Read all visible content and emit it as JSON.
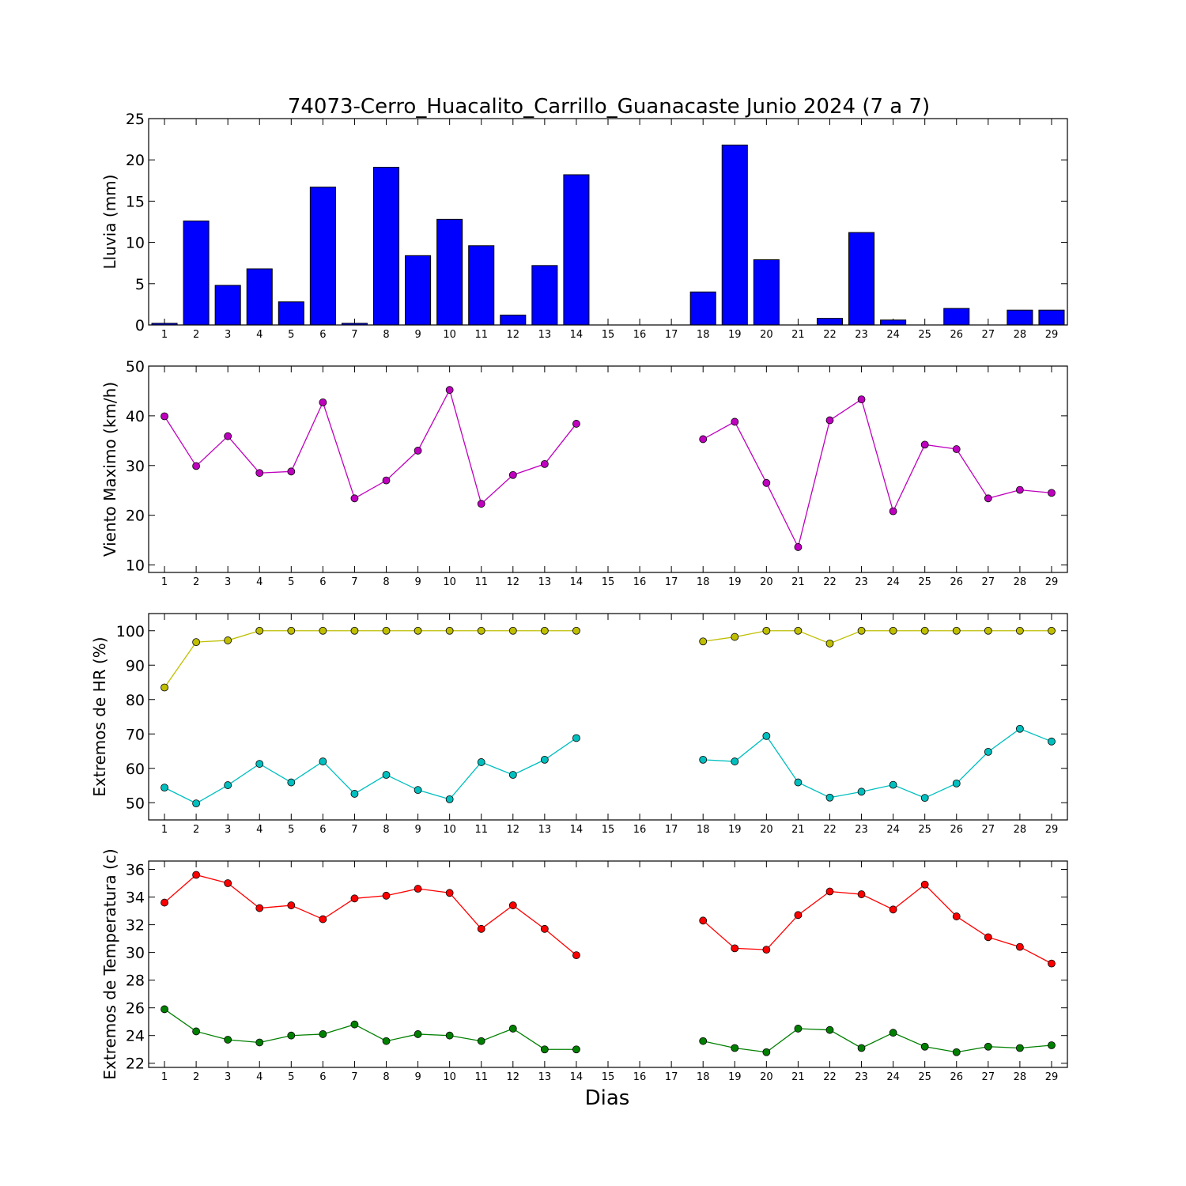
{
  "figure": {
    "title": "74073-Cerro_Huacalito_Carrillo_Guanacaste Junio 2024  (7 a 7)",
    "xlabel": "Dias"
  },
  "chart_data": [
    {
      "type": "bar",
      "ylabel": "Lluvia (mm)",
      "ylim": [
        0,
        25
      ],
      "yticks": [
        0,
        5,
        10,
        15,
        20,
        25
      ],
      "xlim": [
        0.5,
        29.5
      ],
      "x": [
        1,
        2,
        3,
        4,
        5,
        6,
        7,
        8,
        9,
        10,
        11,
        12,
        13,
        14,
        15,
        16,
        17,
        18,
        19,
        20,
        21,
        22,
        23,
        24,
        25,
        26,
        27,
        28,
        29
      ],
      "grid": false,
      "series": [
        {
          "color": "#0000ff",
          "values": [
            0.2,
            12.6,
            4.8,
            6.8,
            2.8,
            16.7,
            0.2,
            19.1,
            8.4,
            12.8,
            9.6,
            1.2,
            7.2,
            18.2,
            0,
            0,
            0,
            4.0,
            21.8,
            7.9,
            0,
            0.8,
            11.2,
            0.6,
            0,
            2.0,
            0,
            1.8,
            1.8
          ]
        }
      ]
    },
    {
      "type": "line",
      "ylabel": "Viento Maximo (km/h)",
      "ylim": [
        8.5,
        50
      ],
      "yticks": [
        10,
        20,
        30,
        40,
        50
      ],
      "xlim": [
        0.5,
        29.5
      ],
      "x": [
        1,
        2,
        3,
        4,
        5,
        6,
        7,
        8,
        9,
        10,
        11,
        12,
        13,
        14,
        15,
        16,
        17,
        18,
        19,
        20,
        21,
        22,
        23,
        24,
        25,
        26,
        27,
        28,
        29
      ],
      "grid": false,
      "series": [
        {
          "color": "#bf00bf",
          "values": [
            39.9,
            29.9,
            35.9,
            28.5,
            28.8,
            42.7,
            23.4,
            27.0,
            33.0,
            45.2,
            22.3,
            28.1,
            30.3,
            38.4,
            null,
            null,
            null,
            35.3,
            38.8,
            26.5,
            13.6,
            39.1,
            43.3,
            20.8,
            34.2,
            33.3,
            23.4,
            25.1,
            24.5
          ]
        }
      ]
    },
    {
      "type": "line",
      "ylabel": "Extremos de HR (%)",
      "ylim": [
        45,
        105
      ],
      "yticks": [
        50,
        60,
        70,
        80,
        90,
        100
      ],
      "xlim": [
        0.5,
        29.5
      ],
      "x": [
        1,
        2,
        3,
        4,
        5,
        6,
        7,
        8,
        9,
        10,
        11,
        12,
        13,
        14,
        15,
        16,
        17,
        18,
        19,
        20,
        21,
        22,
        23,
        24,
        25,
        26,
        27,
        28,
        29
      ],
      "grid": false,
      "series": [
        {
          "color": "#bfbf00",
          "values": [
            83.5,
            96.7,
            97.2,
            100,
            100,
            100,
            100,
            100,
            100,
            100,
            100,
            100,
            100,
            100,
            null,
            null,
            null,
            96.9,
            98.2,
            100,
            100,
            96.3,
            100,
            100,
            100,
            100,
            100,
            100,
            100
          ]
        },
        {
          "color": "#00bfbf",
          "values": [
            54.4,
            49.8,
            55.1,
            61.3,
            55.9,
            62.0,
            52.6,
            58.1,
            53.7,
            51.0,
            61.8,
            58.1,
            62.5,
            68.8,
            null,
            null,
            null,
            62.5,
            62.0,
            69.4,
            55.9,
            51.5,
            53.2,
            55.2,
            51.4,
            55.6,
            64.8,
            71.5,
            67.8
          ]
        }
      ]
    },
    {
      "type": "line",
      "ylabel": "Extremos de Temperatura (c)",
      "ylim": [
        21.7,
        36.6
      ],
      "yticks": [
        22,
        24,
        26,
        28,
        30,
        32,
        34,
        36
      ],
      "xlim": [
        0.5,
        29.5
      ],
      "x": [
        1,
        2,
        3,
        4,
        5,
        6,
        7,
        8,
        9,
        10,
        11,
        12,
        13,
        14,
        15,
        16,
        17,
        18,
        19,
        20,
        21,
        22,
        23,
        24,
        25,
        26,
        27,
        28,
        29
      ],
      "grid": false,
      "series": [
        {
          "color": "#ff0000",
          "values": [
            33.6,
            35.6,
            35.0,
            33.2,
            33.4,
            32.4,
            33.9,
            34.1,
            34.6,
            34.3,
            31.7,
            33.4,
            31.7,
            29.8,
            null,
            null,
            null,
            32.3,
            30.3,
            30.2,
            32.7,
            34.4,
            34.2,
            33.1,
            34.9,
            32.6,
            31.1,
            30.4,
            29.2
          ]
        },
        {
          "color": "#008000",
          "values": [
            25.9,
            24.3,
            23.7,
            23.5,
            24.0,
            24.1,
            24.8,
            23.6,
            24.1,
            24.0,
            23.6,
            24.5,
            23.0,
            23.0,
            null,
            null,
            null,
            23.6,
            23.1,
            22.8,
            24.5,
            24.4,
            23.1,
            24.2,
            23.2,
            22.8,
            23.2,
            23.1,
            23.3
          ]
        }
      ]
    }
  ]
}
